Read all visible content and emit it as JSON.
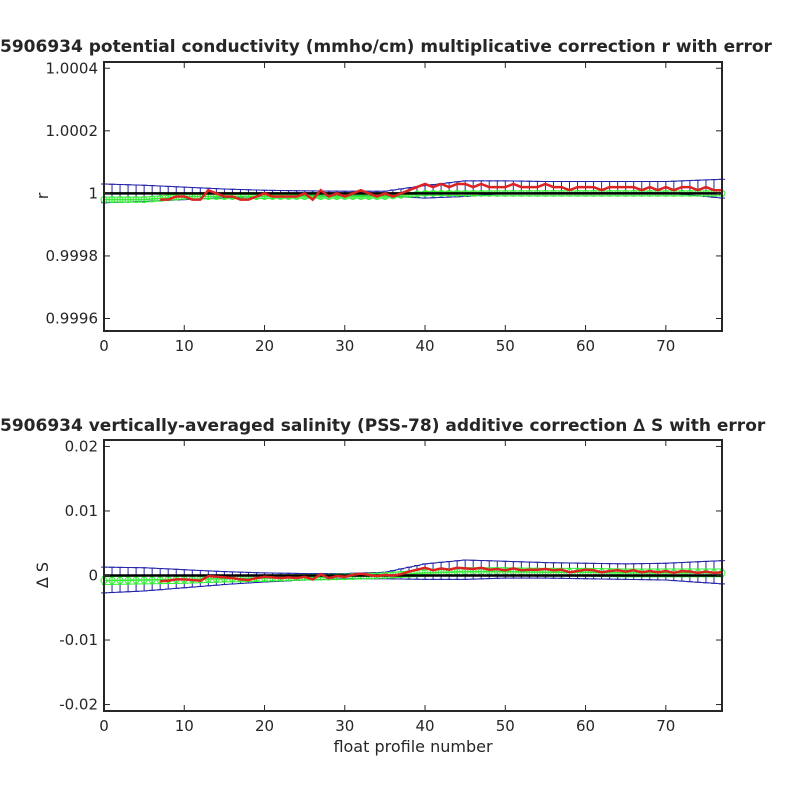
{
  "chart_data": [
    {
      "type": "line",
      "title": "5906934 potential conductivity (mmho/cm) multiplicative correction r with error",
      "xlabel": "",
      "ylabel": "r",
      "xlim": [
        0,
        77
      ],
      "ylim": [
        0.99956,
        1.00042
      ],
      "xticks": [
        0,
        10,
        20,
        30,
        40,
        50,
        60,
        70
      ],
      "xtick_labels": [
        "0",
        "10",
        "20",
        "30",
        "40",
        "50",
        "60",
        "70"
      ],
      "yticks": [
        0.9996,
        0.9998,
        1,
        1.0002,
        1.0004
      ],
      "ytick_labels": [
        "0.9996",
        "0.9998",
        "1",
        "1.0002",
        "1.0004"
      ],
      "grid": false,
      "legend": "none",
      "reference": {
        "name": "",
        "value": 1,
        "color": "#000000"
      },
      "series": [
        {
          "role": "correction",
          "color": "#2222aa",
          "x": [
            0,
            5,
            10,
            15,
            20,
            25,
            30,
            35,
            40,
            45,
            50,
            55,
            60,
            65,
            70,
            77
          ],
          "values": [
            1,
            1,
            1,
            1,
            1,
            1,
            1,
            1,
            1.000005,
            1.000015,
            1.00002,
            1.00002,
            1.00002,
            1.00002,
            1.00002,
            1.000015
          ],
          "error": [
            3e-05,
            2.6e-05,
            2e-05,
            1.4e-05,
            1e-05,
            8e-06,
            7e-06,
            7e-06,
            2e-05,
            2.5e-05,
            2e-05,
            1.8e-05,
            1.8e-05,
            1.8e-05,
            1.8e-05,
            3e-05
          ]
        },
        {
          "role": "profile fits",
          "color": "#33ee33",
          "x": [
            0,
            5,
            10,
            15,
            20,
            25,
            30,
            35,
            40,
            45,
            50,
            55,
            60,
            65,
            70,
            77
          ],
          "values": [
            0.99998,
            0.99998,
            0.99999,
            0.99999,
            0.99999,
            0.99999,
            0.99999,
            0.99999,
            1,
            1,
            1,
            1,
            1,
            1,
            1,
            1
          ],
          "error": [
            8e-06,
            8e-06,
            8e-06,
            7e-06,
            6e-06,
            5e-06,
            5e-06,
            5e-06,
            6e-06,
            7e-06,
            8e-06,
            8e-06,
            8e-06,
            8e-06,
            8e-06,
            8e-06
          ]
        },
        {
          "role": "per-profile correction",
          "color": "#dd2222",
          "x": [
            7,
            8,
            9,
            10,
            11,
            12,
            13,
            14,
            15,
            16,
            17,
            18,
            19,
            20,
            21,
            22,
            23,
            24,
            25,
            26,
            27,
            28,
            29,
            30,
            31,
            32,
            33,
            34,
            35,
            36,
            37,
            38,
            39,
            40,
            41,
            42,
            43,
            44,
            45,
            46,
            47,
            48,
            49,
            50,
            51,
            52,
            53,
            54,
            55,
            56,
            57,
            58,
            59,
            60,
            61,
            62,
            63,
            64,
            65,
            66,
            67,
            68,
            69,
            70,
            71,
            72,
            73,
            74,
            75,
            76,
            77
          ],
          "values": [
            0.99998,
            0.99998,
            0.99999,
            0.99999,
            0.99998,
            0.99998,
            1.00001,
            1,
            0.99999,
            0.99999,
            0.99998,
            0.99998,
            0.99999,
            1,
            0.99999,
            0.99999,
            0.99999,
            0.99999,
            1,
            0.99998,
            1.00001,
            0.99999,
            1,
            0.99999,
            1,
            1.00001,
            1,
            0.99999,
            1,
            0.99999,
            1,
            1.00001,
            1.00002,
            1.00003,
            1.00002,
            1.00003,
            1.00002,
            1.00003,
            1.00003,
            1.00002,
            1.00003,
            1.00002,
            1.00002,
            1.00002,
            1.00003,
            1.00002,
            1.00002,
            1.00002,
            1.00003,
            1.00002,
            1.00002,
            1.00001,
            1.00002,
            1.00002,
            1.00002,
            1.00001,
            1.00002,
            1.00002,
            1.00002,
            1.00002,
            1.00001,
            1.00002,
            1.00001,
            1.00002,
            1.00001,
            1.00002,
            1.00002,
            1.00001,
            1.00002,
            1.00001,
            1.00001
          ]
        }
      ]
    },
    {
      "type": "line",
      "title": "5906934 vertically-averaged salinity (PSS-78) additive correction ∆ S with error",
      "xlabel": "float profile number",
      "ylabel": "∆ S",
      "xlim": [
        0,
        77
      ],
      "ylim": [
        -0.021,
        0.021
      ],
      "xticks": [
        0,
        10,
        20,
        30,
        40,
        50,
        60,
        70
      ],
      "xtick_labels": [
        "0",
        "10",
        "20",
        "30",
        "40",
        "50",
        "60",
        "70"
      ],
      "yticks": [
        -0.02,
        -0.01,
        0,
        0.01,
        0.02
      ],
      "ytick_labels": [
        "-0.02",
        "-0.01",
        "0",
        "0.01",
        "0.02"
      ],
      "grid": false,
      "legend": "none",
      "reference": {
        "name": "",
        "value": 0,
        "color": "#000000"
      },
      "series": [
        {
          "role": "correction",
          "color": "#2222aa",
          "x": [
            0,
            5,
            10,
            15,
            20,
            25,
            30,
            35,
            40,
            45,
            50,
            55,
            60,
            65,
            70,
            77
          ],
          "values": [
            -0.0007,
            -0.0006,
            -0.0005,
            -0.0004,
            -0.0003,
            -0.0002,
            -0.0001,
            0,
            0.0006,
            0.0009,
            0.0009,
            0.0008,
            0.0007,
            0.0006,
            0.0006,
            0.0005
          ],
          "error": [
            0.002,
            0.0018,
            0.0014,
            0.001,
            0.0007,
            0.0005,
            0.0004,
            0.0005,
            0.0012,
            0.0015,
            0.0013,
            0.0012,
            0.0012,
            0.0012,
            0.0013,
            0.0018
          ]
        },
        {
          "role": "profile fits",
          "color": "#33ee33",
          "x": [
            0,
            5,
            10,
            15,
            20,
            25,
            30,
            35,
            40,
            45,
            50,
            55,
            60,
            65,
            70,
            77
          ],
          "values": [
            -0.0008,
            -0.0007,
            -0.0006,
            -0.0005,
            -0.0004,
            -0.0003,
            -0.0002,
            0,
            0.0004,
            0.0006,
            0.0006,
            0.0005,
            0.0005,
            0.0004,
            0.0004,
            0.0004
          ],
          "error": [
            0.0006,
            0.0006,
            0.0006,
            0.0005,
            0.0005,
            0.0004,
            0.0004,
            0.0004,
            0.0005,
            0.0006,
            0.0006,
            0.0006,
            0.0006,
            0.0006,
            0.0006,
            0.0006
          ]
        },
        {
          "role": "per-profile correction",
          "color": "#dd2222",
          "x": [
            7,
            8,
            9,
            10,
            11,
            12,
            13,
            14,
            15,
            16,
            17,
            18,
            19,
            20,
            21,
            22,
            23,
            24,
            25,
            26,
            27,
            28,
            29,
            30,
            31,
            32,
            33,
            34,
            35,
            36,
            37,
            38,
            39,
            40,
            41,
            42,
            43,
            44,
            45,
            46,
            47,
            48,
            49,
            50,
            51,
            52,
            53,
            54,
            55,
            56,
            57,
            58,
            59,
            60,
            61,
            62,
            63,
            64,
            65,
            66,
            67,
            68,
            69,
            70,
            71,
            72,
            73,
            74,
            75,
            76,
            77
          ],
          "values": [
            -0.0009,
            -0.0008,
            -0.0006,
            -0.0006,
            -0.0007,
            -0.0008,
            -0.0001,
            -0.0002,
            -0.0003,
            -0.0004,
            -0.0006,
            -0.0007,
            -0.0004,
            -0.0002,
            -0.0003,
            -0.0004,
            -0.0003,
            -0.0004,
            -0.0002,
            -0.0006,
            0.0002,
            -0.0004,
            -0.0001,
            -0.0002,
            0.0001,
            0.0003,
            0.0001,
            -0.0001,
            0.0001,
            0,
            0.0002,
            0.0006,
            0.0009,
            0.0012,
            0.0008,
            0.0011,
            0.0009,
            0.0012,
            0.0011,
            0.001,
            0.0012,
            0.0009,
            0.001,
            0.0008,
            0.0011,
            0.0008,
            0.0009,
            0.0009,
            0.001,
            0.0008,
            0.0009,
            0.0005,
            0.0007,
            0.0009,
            0.0008,
            0.0005,
            0.0007,
            0.0008,
            0.0006,
            0.0008,
            0.0005,
            0.0007,
            0.0005,
            0.0007,
            0.0004,
            0.0007,
            0.0006,
            0.0004,
            0.0006,
            0.0004,
            0.0005
          ]
        }
      ]
    }
  ]
}
